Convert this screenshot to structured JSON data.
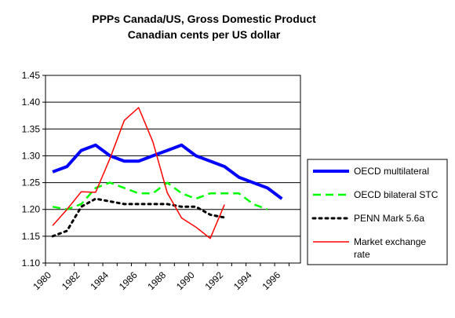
{
  "chart_data": {
    "type": "line",
    "title_line1": "PPPs Canada/US, Gross Domestic Product",
    "title_line2": "Canadian cents per US dollar",
    "xlabel": "",
    "ylabel": "",
    "xlim": [
      1980,
      1997.8
    ],
    "ylim": [
      1.1,
      1.45
    ],
    "y_ticks": [
      "1.10",
      "1.15",
      "1.20",
      "1.25",
      "1.30",
      "1.35",
      "1.40",
      "1.45"
    ],
    "x_ticks": [
      "1980",
      "1982",
      "1984",
      "1986",
      "1988",
      "1990",
      "1992",
      "1994",
      "1996"
    ],
    "grid": "horizontal",
    "legend_position": "right",
    "series": [
      {
        "name": "OECD multilateral",
        "color": "#0000ff",
        "style": "solid-thick",
        "x": [
          1980.5,
          1981.5,
          1982.5,
          1983.5,
          1984.5,
          1985.5,
          1986.5,
          1987.5,
          1988.5,
          1989.5,
          1990.5,
          1991.5,
          1992.5,
          1993.5,
          1994.5,
          1995.5,
          1996.5
        ],
        "y": [
          1.27,
          1.28,
          1.31,
          1.32,
          1.3,
          1.29,
          1.29,
          1.3,
          1.31,
          1.32,
          1.3,
          1.29,
          1.28,
          1.26,
          1.25,
          1.24,
          1.22
        ]
      },
      {
        "name": "OECD bilateral STC",
        "color": "#00ff00",
        "style": "dashed",
        "x": [
          1980.5,
          1981.5,
          1982.5,
          1983.5,
          1984.5,
          1985.5,
          1986.5,
          1987.5,
          1988.5,
          1989.5,
          1990.5,
          1991.5,
          1992.5,
          1993.5,
          1994.5,
          1995.5
        ],
        "y": [
          1.205,
          1.2,
          1.21,
          1.24,
          1.25,
          1.24,
          1.23,
          1.23,
          1.25,
          1.23,
          1.22,
          1.23,
          1.23,
          1.23,
          1.21,
          1.2
        ]
      },
      {
        "name": "PENN Mark 5.6a",
        "color": "#000000",
        "style": "dotted",
        "x": [
          1980.5,
          1981.5,
          1982.5,
          1983.5,
          1984.5,
          1985.5,
          1986.5,
          1987.5,
          1988.5,
          1989.5,
          1990.5,
          1991.5,
          1992.5
        ],
        "y": [
          1.15,
          1.16,
          1.205,
          1.22,
          1.215,
          1.21,
          1.21,
          1.21,
          1.21,
          1.205,
          1.205,
          1.19,
          1.185
        ]
      },
      {
        "name": "Market exchange rate",
        "color": "#ff0000",
        "style": "solid",
        "x": [
          1980.5,
          1981.5,
          1982.5,
          1983.5,
          1984.5,
          1985.5,
          1986.5,
          1987.5,
          1988.5,
          1989.5,
          1990.5,
          1991.5,
          1992.5
        ],
        "y": [
          1.17,
          1.2,
          1.233,
          1.232,
          1.295,
          1.366,
          1.39,
          1.326,
          1.231,
          1.184,
          1.167,
          1.146,
          1.209
        ]
      }
    ]
  }
}
